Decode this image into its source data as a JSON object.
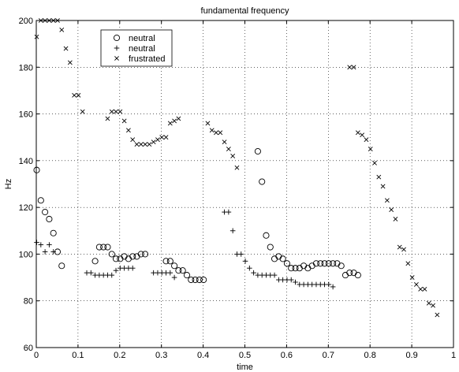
{
  "chart_data": {
    "type": "scatter",
    "title": "fundamental frequency",
    "xlabel": "time",
    "ylabel": "Hz",
    "xlim": [
      0,
      1
    ],
    "ylim": [
      60,
      200
    ],
    "xticks": [
      0,
      0.1,
      0.2,
      0.3,
      0.4,
      0.5,
      0.6,
      0.7,
      0.8,
      0.9,
      1
    ],
    "xtick_labels": [
      "0",
      "0.1",
      "0.2",
      "0.3",
      "0.4",
      "0.5",
      "0.6",
      "0.7",
      "0.8",
      "0.9",
      "1"
    ],
    "yticks": [
      60,
      80,
      100,
      120,
      140,
      160,
      180,
      200
    ],
    "ytick_labels": [
      "60",
      "80",
      "100",
      "120",
      "140",
      "160",
      "180",
      "200"
    ],
    "grid": true,
    "legend_position": "top-left",
    "series": [
      {
        "name": "neutral",
        "marker": "circle",
        "color": "#000000",
        "points": [
          [
            0.001,
            136
          ],
          [
            0.011,
            123
          ],
          [
            0.021,
            118
          ],
          [
            0.031,
            115
          ],
          [
            0.041,
            109
          ],
          [
            0.051,
            101
          ],
          [
            0.061,
            95
          ],
          [
            0.141,
            97
          ],
          [
            0.151,
            103
          ],
          [
            0.161,
            103
          ],
          [
            0.171,
            103
          ],
          [
            0.181,
            100
          ],
          [
            0.191,
            98
          ],
          [
            0.201,
            98
          ],
          [
            0.211,
            99
          ],
          [
            0.221,
            98
          ],
          [
            0.231,
            99
          ],
          [
            0.241,
            99
          ],
          [
            0.251,
            100
          ],
          [
            0.261,
            100
          ],
          [
            0.311,
            97
          ],
          [
            0.321,
            97
          ],
          [
            0.331,
            95
          ],
          [
            0.341,
            93
          ],
          [
            0.351,
            93
          ],
          [
            0.361,
            91
          ],
          [
            0.371,
            89
          ],
          [
            0.381,
            89
          ],
          [
            0.391,
            89
          ],
          [
            0.401,
            89
          ],
          [
            0.531,
            144
          ],
          [
            0.541,
            131
          ],
          [
            0.551,
            108
          ],
          [
            0.561,
            103
          ],
          [
            0.571,
            98
          ],
          [
            0.581,
            99
          ],
          [
            0.591,
            98
          ],
          [
            0.601,
            96
          ],
          [
            0.611,
            94
          ],
          [
            0.621,
            94
          ],
          [
            0.631,
            94
          ],
          [
            0.641,
            95
          ],
          [
            0.651,
            94
          ],
          [
            0.661,
            95
          ],
          [
            0.671,
            96
          ],
          [
            0.681,
            96
          ],
          [
            0.691,
            96
          ],
          [
            0.701,
            96
          ],
          [
            0.711,
            96
          ],
          [
            0.721,
            96
          ],
          [
            0.731,
            95
          ],
          [
            0.741,
            91
          ],
          [
            0.751,
            92
          ],
          [
            0.761,
            92
          ],
          [
            0.771,
            91
          ]
        ]
      },
      {
        "name": "neutral",
        "marker": "plus",
        "color": "#000000",
        "points": [
          [
            0.001,
            105
          ],
          [
            0.011,
            104
          ],
          [
            0.021,
            101
          ],
          [
            0.031,
            104
          ],
          [
            0.041,
            101
          ],
          [
            0.121,
            92
          ],
          [
            0.131,
            92
          ],
          [
            0.141,
            91
          ],
          [
            0.151,
            91
          ],
          [
            0.161,
            91
          ],
          [
            0.171,
            91
          ],
          [
            0.181,
            91
          ],
          [
            0.191,
            93
          ],
          [
            0.201,
            94
          ],
          [
            0.211,
            94
          ],
          [
            0.221,
            94
          ],
          [
            0.231,
            94
          ],
          [
            0.281,
            92
          ],
          [
            0.291,
            92
          ],
          [
            0.301,
            92
          ],
          [
            0.311,
            92
          ],
          [
            0.321,
            92
          ],
          [
            0.331,
            90
          ],
          [
            0.451,
            118
          ],
          [
            0.461,
            118
          ],
          [
            0.471,
            110
          ],
          [
            0.481,
            100
          ],
          [
            0.491,
            100
          ],
          [
            0.501,
            97
          ],
          [
            0.511,
            94
          ],
          [
            0.521,
            92
          ],
          [
            0.531,
            91
          ],
          [
            0.541,
            91
          ],
          [
            0.551,
            91
          ],
          [
            0.561,
            91
          ],
          [
            0.571,
            91
          ],
          [
            0.581,
            89
          ],
          [
            0.591,
            89
          ],
          [
            0.601,
            89
          ],
          [
            0.611,
            89
          ],
          [
            0.621,
            88
          ],
          [
            0.631,
            87
          ],
          [
            0.641,
            87
          ],
          [
            0.651,
            87
          ],
          [
            0.661,
            87
          ],
          [
            0.671,
            87
          ],
          [
            0.681,
            87
          ],
          [
            0.691,
            87
          ],
          [
            0.701,
            87
          ],
          [
            0.711,
            86
          ]
        ]
      },
      {
        "name": "frustrated",
        "marker": "x",
        "color": "#000000",
        "points": [
          [
            0.001,
            193
          ],
          [
            0.011,
            200
          ],
          [
            0.021,
            200
          ],
          [
            0.031,
            200
          ],
          [
            0.041,
            200
          ],
          [
            0.051,
            200
          ],
          [
            0.061,
            196
          ],
          [
            0.071,
            188
          ],
          [
            0.081,
            182
          ],
          [
            0.091,
            168
          ],
          [
            0.101,
            168
          ],
          [
            0.111,
            161
          ],
          [
            0.171,
            158
          ],
          [
            0.181,
            161
          ],
          [
            0.191,
            161
          ],
          [
            0.201,
            161
          ],
          [
            0.211,
            157
          ],
          [
            0.221,
            153
          ],
          [
            0.231,
            149
          ],
          [
            0.241,
            147
          ],
          [
            0.251,
            147
          ],
          [
            0.261,
            147
          ],
          [
            0.271,
            147
          ],
          [
            0.281,
            148
          ],
          [
            0.291,
            149
          ],
          [
            0.301,
            150
          ],
          [
            0.311,
            150
          ],
          [
            0.321,
            156
          ],
          [
            0.331,
            157
          ],
          [
            0.341,
            158
          ],
          [
            0.411,
            156
          ],
          [
            0.421,
            153
          ],
          [
            0.431,
            152
          ],
          [
            0.441,
            152
          ],
          [
            0.451,
            148
          ],
          [
            0.461,
            145
          ],
          [
            0.471,
            142
          ],
          [
            0.481,
            137
          ],
          [
            0.751,
            180
          ],
          [
            0.761,
            180
          ],
          [
            0.771,
            152
          ],
          [
            0.781,
            151
          ],
          [
            0.791,
            149
          ],
          [
            0.801,
            145
          ],
          [
            0.811,
            139
          ],
          [
            0.821,
            133
          ],
          [
            0.831,
            129
          ],
          [
            0.841,
            123
          ],
          [
            0.851,
            119
          ],
          [
            0.861,
            115
          ],
          [
            0.871,
            103
          ],
          [
            0.881,
            102
          ],
          [
            0.891,
            96
          ],
          [
            0.901,
            90
          ],
          [
            0.911,
            87
          ],
          [
            0.921,
            85
          ],
          [
            0.931,
            85
          ],
          [
            0.941,
            79
          ],
          [
            0.951,
            78
          ],
          [
            0.961,
            74
          ]
        ]
      }
    ]
  }
}
